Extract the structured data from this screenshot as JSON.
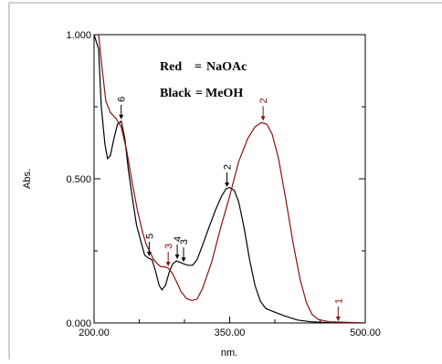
{
  "chart_data": {
    "type": "line",
    "xlabel": "nm.",
    "ylabel": "Abs.",
    "xlim": [
      200,
      500
    ],
    "ylim": [
      0.0,
      1.0
    ],
    "x_ticks": [
      200,
      350,
      500
    ],
    "x_tick_labels": [
      "200.00",
      "350.00",
      "500.00"
    ],
    "y_ticks": [
      0.0,
      0.5,
      1.0
    ],
    "y_tick_labels": [
      "0.000",
      "0.500",
      "1.000"
    ],
    "x_minor_ticks": [
      250,
      300,
      400,
      450
    ],
    "y_minor_ticks": [
      0.25,
      0.75
    ],
    "grid": false,
    "legend_lines": [
      {
        "left": "Red",
        "eq": "=",
        "right": "NaOAc"
      },
      {
        "left": "Black",
        "eq": "=",
        "right": "MeOH"
      }
    ],
    "series": [
      {
        "color": "#000000",
        "points": [
          [
            200,
            1.0
          ],
          [
            205,
            0.95
          ],
          [
            208,
            0.75
          ],
          [
            212,
            0.62
          ],
          [
            215,
            0.57
          ],
          [
            218,
            0.58
          ],
          [
            222,
            0.64
          ],
          [
            226,
            0.69
          ],
          [
            230,
            0.7
          ],
          [
            234,
            0.64
          ],
          [
            238,
            0.53
          ],
          [
            243,
            0.42
          ],
          [
            247,
            0.34
          ],
          [
            252,
            0.28
          ],
          [
            256,
            0.235
          ],
          [
            260,
            0.225
          ],
          [
            264,
            0.22
          ],
          [
            268,
            0.18
          ],
          [
            272,
            0.13
          ],
          [
            275,
            0.115
          ],
          [
            279,
            0.13
          ],
          [
            283,
            0.175
          ],
          [
            287,
            0.205
          ],
          [
            291,
            0.215
          ],
          [
            295,
            0.21
          ],
          [
            299,
            0.205
          ],
          [
            304,
            0.2
          ],
          [
            309,
            0.2
          ],
          [
            314,
            0.22
          ],
          [
            320,
            0.27
          ],
          [
            327,
            0.33
          ],
          [
            334,
            0.39
          ],
          [
            341,
            0.44
          ],
          [
            346,
            0.465
          ],
          [
            350,
            0.47
          ],
          [
            355,
            0.46
          ],
          [
            360,
            0.42
          ],
          [
            366,
            0.33
          ],
          [
            372,
            0.22
          ],
          [
            378,
            0.13
          ],
          [
            384,
            0.075
          ],
          [
            390,
            0.05
          ],
          [
            398,
            0.04
          ],
          [
            410,
            0.025
          ],
          [
            425,
            0.01
          ],
          [
            440,
            0.004
          ],
          [
            460,
            0.001
          ],
          [
            500,
            0.0
          ]
        ]
      },
      {
        "color": "#8b1010",
        "points": [
          [
            205,
            1.0
          ],
          [
            209,
            0.88
          ],
          [
            213,
            0.77
          ],
          [
            218,
            0.73
          ],
          [
            224,
            0.71
          ],
          [
            230,
            0.68
          ],
          [
            236,
            0.6
          ],
          [
            242,
            0.49
          ],
          [
            248,
            0.39
          ],
          [
            254,
            0.31
          ],
          [
            258,
            0.27
          ],
          [
            262,
            0.245
          ],
          [
            266,
            0.22
          ],
          [
            270,
            0.205
          ],
          [
            274,
            0.195
          ],
          [
            278,
            0.195
          ],
          [
            282,
            0.19
          ],
          [
            286,
            0.175
          ],
          [
            291,
            0.145
          ],
          [
            296,
            0.11
          ],
          [
            302,
            0.085
          ],
          [
            308,
            0.078
          ],
          [
            314,
            0.083
          ],
          [
            320,
            0.12
          ],
          [
            330,
            0.21
          ],
          [
            340,
            0.33
          ],
          [
            350,
            0.44
          ],
          [
            360,
            0.56
          ],
          [
            370,
            0.64
          ],
          [
            378,
            0.68
          ],
          [
            385,
            0.695
          ],
          [
            391,
            0.69
          ],
          [
            397,
            0.655
          ],
          [
            404,
            0.57
          ],
          [
            412,
            0.43
          ],
          [
            420,
            0.28
          ],
          [
            428,
            0.15
          ],
          [
            435,
            0.07
          ],
          [
            441,
            0.03
          ],
          [
            448,
            0.012
          ],
          [
            460,
            0.004
          ],
          [
            500,
            0.0
          ]
        ]
      }
    ],
    "peak_markers": [
      {
        "label": "6",
        "x": 230,
        "y": 0.7,
        "color": "#000000"
      },
      {
        "label": "5",
        "x": 261,
        "y": 0.225,
        "color": "#000000"
      },
      {
        "label": "3",
        "x": 282,
        "y": 0.19,
        "color": "#8b1010"
      },
      {
        "label": "4",
        "x": 292,
        "y": 0.215,
        "color": "#000000"
      },
      {
        "label": "3",
        "x": 299,
        "y": 0.205,
        "color": "#000000"
      },
      {
        "label": "2",
        "x": 347,
        "y": 0.465,
        "color": "#000000"
      },
      {
        "label": "2",
        "x": 387,
        "y": 0.695,
        "color": "#8b1010"
      },
      {
        "label": "1",
        "x": 470,
        "y": 0.0,
        "color": "#8b1010"
      }
    ]
  }
}
